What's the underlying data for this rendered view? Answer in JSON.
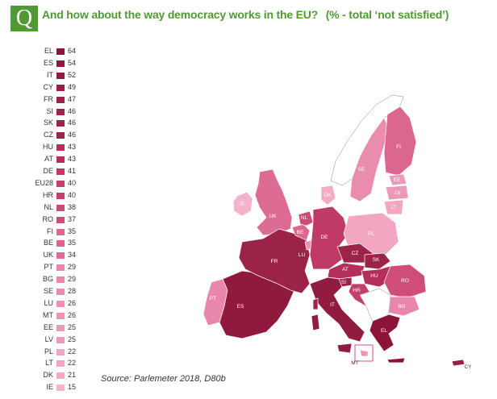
{
  "header": {
    "badge": "Q",
    "question": "And how about the way democracy works in the EU?",
    "subtitle": "(% - total ‘not satisfied’)"
  },
  "legend": [
    {
      "code": "EL",
      "value": 64,
      "color": "#8a1538"
    },
    {
      "code": "ES",
      "value": 54,
      "color": "#8f1a3d"
    },
    {
      "code": "IT",
      "value": 52,
      "color": "#921c40"
    },
    {
      "code": "CY",
      "value": 49,
      "color": "#972044"
    },
    {
      "code": "FR",
      "value": 47,
      "color": "#9b2347"
    },
    {
      "code": "SI",
      "value": 46,
      "color": "#9d2449"
    },
    {
      "code": "SK",
      "value": 46,
      "color": "#9d2449"
    },
    {
      "code": "CZ",
      "value": 46,
      "color": "#9d2449"
    },
    {
      "code": "HU",
      "value": 43,
      "color": "#b42e5a"
    },
    {
      "code": "AT",
      "value": 43,
      "color": "#b42e5a"
    },
    {
      "code": "DE",
      "value": 41,
      "color": "#c03a66"
    },
    {
      "code": "EU28",
      "value": 40,
      "color": "#c53f6b"
    },
    {
      "code": "HR",
      "value": 40,
      "color": "#c53f6b"
    },
    {
      "code": "NL",
      "value": 38,
      "color": "#cc4a75"
    },
    {
      "code": "RO",
      "value": 37,
      "color": "#cf4e79"
    },
    {
      "code": "FI",
      "value": 35,
      "color": "#db6790"
    },
    {
      "code": "BE",
      "value": 35,
      "color": "#db6790"
    },
    {
      "code": "UK",
      "value": 34,
      "color": "#dd6c94"
    },
    {
      "code": "PT",
      "value": 29,
      "color": "#e887ab"
    },
    {
      "code": "BG",
      "value": 29,
      "color": "#e887ab"
    },
    {
      "code": "SE",
      "value": 28,
      "color": "#ea8cae"
    },
    {
      "code": "LU",
      "value": 26,
      "color": "#ec93b4"
    },
    {
      "code": "MT",
      "value": 26,
      "color": "#ec93b4"
    },
    {
      "code": "EE",
      "value": 25,
      "color": "#ee98b8"
    },
    {
      "code": "LV",
      "value": 25,
      "color": "#ee98b8"
    },
    {
      "code": "PL",
      "value": 22,
      "color": "#f2a6c2"
    },
    {
      "code": "LT",
      "value": 22,
      "color": "#f2a6c2"
    },
    {
      "code": "DK",
      "value": 21,
      "color": "#f3aac5"
    },
    {
      "code": "IE",
      "value": 15,
      "color": "#f5b3cb"
    }
  ],
  "source": "Source: Parlemeter 2018, D80b"
}
